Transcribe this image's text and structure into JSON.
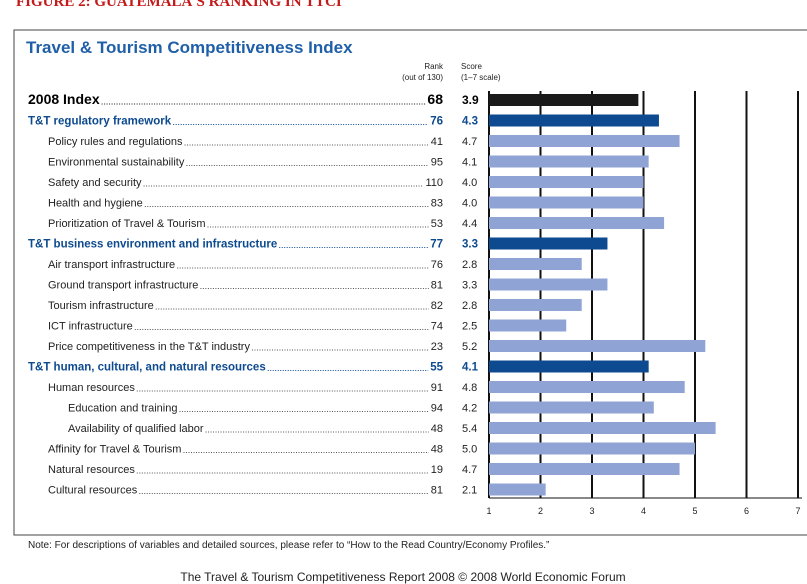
{
  "figure_label": "FIGURE 2: GUATEMALA'S RANKING IN TTCI",
  "chart_data": {
    "type": "barh",
    "title": "Travel & Tourism Competitiveness Index",
    "rank_header": [
      "Rank",
      "(out of 130)"
    ],
    "score_header": [
      "Score",
      "(1–7 scale)"
    ],
    "categories": [
      "2008 Index",
      "T&T regulatory framework",
      "Policy rules and regulations",
      "Environmental sustainability",
      "Safety and security",
      "Health and hygiene",
      "Prioritization of Travel & Tourism",
      "T&T business environment and infrastructure",
      "Air transport infrastructure",
      "Ground transport infrastructure",
      "Tourism infrastructure",
      "ICT infrastructure",
      "Price competitiveness in the T&T industry",
      "T&T human, cultural, and natural resources",
      "Human resources",
      "Education and training",
      "Availability of qualified labor",
      "Affinity for Travel & Tourism",
      "Natural resources",
      "Cultural resources"
    ],
    "ranks": [
      68,
      76,
      41,
      95,
      110,
      83,
      53,
      77,
      76,
      81,
      82,
      74,
      23,
      55,
      91,
      94,
      48,
      48,
      19,
      81
    ],
    "values": [
      3.9,
      4.3,
      4.7,
      4.1,
      4.0,
      4.0,
      4.4,
      3.3,
      2.8,
      3.3,
      2.8,
      2.5,
      5.2,
      4.1,
      4.8,
      4.2,
      5.4,
      5.0,
      4.7,
      2.1
    ],
    "value_labels": [
      "3.9",
      "4.3",
      "4.7",
      "4.1",
      "4.0",
      "4.0",
      "4.4",
      "3.3",
      "2.8",
      "3.3",
      "2.8",
      "2.5",
      "5.2",
      "4.1",
      "4.8",
      "4.2",
      "5.4",
      "5.0",
      "4.7",
      "2.1"
    ],
    "colors": [
      "#1a1a1a",
      "#0d4a8f",
      "#8fa3d4",
      "#8fa3d4",
      "#8fa3d4",
      "#8fa3d4",
      "#8fa3d4",
      "#0d4a8f",
      "#8fa3d4",
      "#8fa3d4",
      "#8fa3d4",
      "#8fa3d4",
      "#8fa3d4",
      "#0d4a8f",
      "#8fa3d4",
      "#8fa3d4",
      "#8fa3d4",
      "#8fa3d4",
      "#8fa3d4",
      "#8fa3d4"
    ],
    "xlim": [
      1,
      7
    ],
    "xticks": [
      1,
      2,
      3,
      4,
      5,
      6,
      7
    ],
    "grid": true,
    "note": "Note: For descriptions of variables and detailed sources, please refer to “How to the Read Country/Economy Profiles.”",
    "footer": "The Travel & Tourism Competitiveness Report 2008 © 2008 World Economic Forum"
  }
}
